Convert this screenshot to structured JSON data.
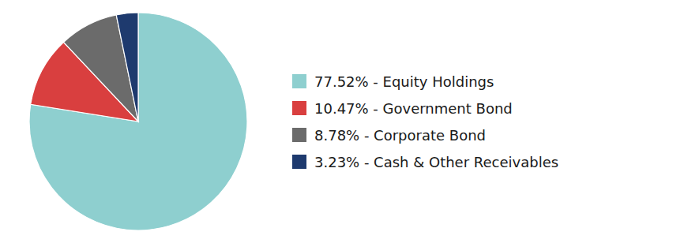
{
  "chart_data": {
    "type": "pie",
    "categories": [
      "77.52% - Equity Holdings",
      "10.47% - Government Bond",
      "8.78% - Corporate Bond",
      "3.23% - Cash & Other Receivables"
    ],
    "values": [
      77.52,
      10.47,
      8.78,
      3.23
    ],
    "colors": [
      "#8ecfcf",
      "#d93f3f",
      "#6b6b6b",
      "#1e3a6e"
    ],
    "legend": "right"
  }
}
